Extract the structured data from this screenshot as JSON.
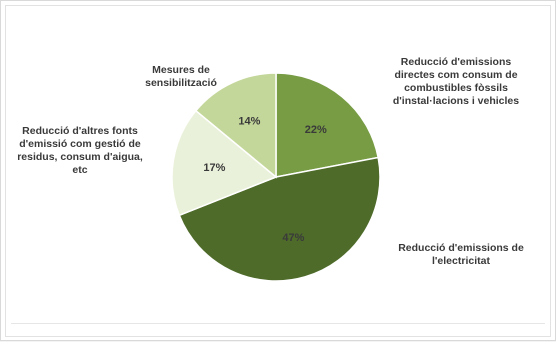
{
  "chart_data": {
    "type": "pie",
    "categories": [
      "Reducció d'emissions directes com consum de combustibles fòssils d'instal·lacions i vehicles",
      "Reducció d'emissions de l'electricitat",
      "Reducció d'altres fonts d'emissió com gestió de residus, consum d'aigua, etc",
      "Mesures de sensibilització"
    ],
    "values": [
      22,
      47,
      17,
      14
    ],
    "labels": [
      "22%",
      "47%",
      "17%",
      "14%"
    ],
    "category_lines": [
      [
        "Reducció d'emissions",
        "directes com consum de",
        "combustibles fòssils",
        "d'instal·lacions i vehicles"
      ],
      [
        "Reducció d'emissions de",
        "l'electricitat"
      ],
      [
        "Reducció d'altres fonts",
        "d'emissió com gestió de",
        "residus, consum d'aigua,",
        "etc"
      ],
      [
        "Mesures de",
        "sensibilització"
      ]
    ],
    "colors": [
      "#779c44",
      "#4e6b2a",
      "#eaf1da",
      "#c4d79b"
    ],
    "legend": "none"
  }
}
